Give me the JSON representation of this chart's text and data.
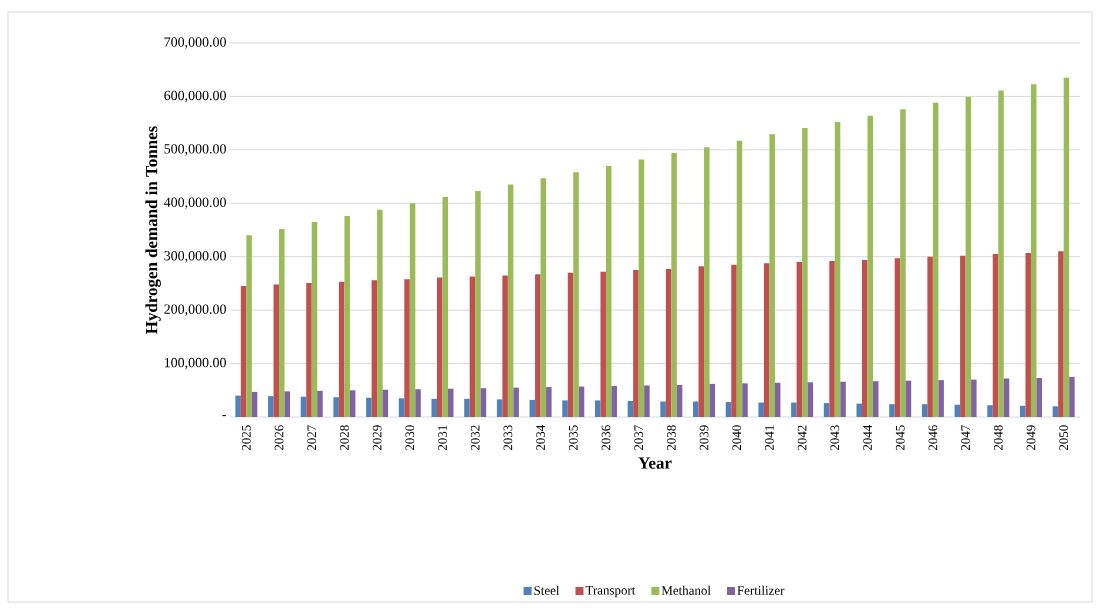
{
  "chart_data": {
    "type": "bar",
    "xlabel": "Year",
    "ylabel": "Hydrogen demand in Tonnes",
    "categories": [
      "2025",
      "2026",
      "2027",
      "2028",
      "2029",
      "2030",
      "2031",
      "2032",
      "2033",
      "2034",
      "2035",
      "2036",
      "2037",
      "2038",
      "2039",
      "2040",
      "2041",
      "2042",
      "2043",
      "2044",
      "2045",
      "2046",
      "2047",
      "2048",
      "2049",
      "2050"
    ],
    "series": [
      {
        "name": "Steel",
        "color": "#4f81bd",
        "values": [
          40000,
          39000,
          38000,
          37000,
          36000,
          35000,
          34000,
          34000,
          33000,
          32000,
          31000,
          31000,
          30000,
          29000,
          29000,
          28000,
          27000,
          27000,
          26000,
          25000,
          24000,
          24000,
          23000,
          22000,
          21000,
          20000
        ]
      },
      {
        "name": "Transport",
        "color": "#c0504d",
        "values": [
          245000,
          248000,
          251000,
          253000,
          256000,
          258000,
          261000,
          263000,
          265000,
          267000,
          270000,
          272000,
          275000,
          277000,
          282000,
          285000,
          288000,
          290000,
          292000,
          294000,
          297000,
          300000,
          302000,
          305000,
          307000,
          310000
        ]
      },
      {
        "name": "Methanol",
        "color": "#9bbb59",
        "values": [
          340000,
          352000,
          365000,
          376000,
          388000,
          400000,
          412000,
          423000,
          435000,
          447000,
          458000,
          470000,
          482000,
          494000,
          505000,
          517000,
          529000,
          541000,
          552000,
          564000,
          576000,
          588000,
          599000,
          611000,
          623000,
          635000
        ]
      },
      {
        "name": "Fertilizer",
        "color": "#8064a2",
        "values": [
          47000,
          48000,
          49000,
          50000,
          51000,
          52000,
          53000,
          54000,
          55000,
          56000,
          57000,
          58000,
          59000,
          60000,
          62000,
          63000,
          64000,
          65000,
          66000,
          67000,
          68000,
          69000,
          70000,
          72000,
          73000,
          75000
        ]
      }
    ],
    "ylim": [
      0,
      700000
    ],
    "yticks": [
      {
        "value": 0,
        "label": "-"
      },
      {
        "value": 100000,
        "label": "100,000.00"
      },
      {
        "value": 200000,
        "label": "200,000.00"
      },
      {
        "value": 300000,
        "label": "300,000.00"
      },
      {
        "value": 400000,
        "label": "400,000.00"
      },
      {
        "value": 500000,
        "label": "500,000.00"
      },
      {
        "value": 600000,
        "label": "600,000.00"
      },
      {
        "value": 700000,
        "label": "700,000.00"
      }
    ],
    "grid": "y",
    "legend": "bottom"
  }
}
